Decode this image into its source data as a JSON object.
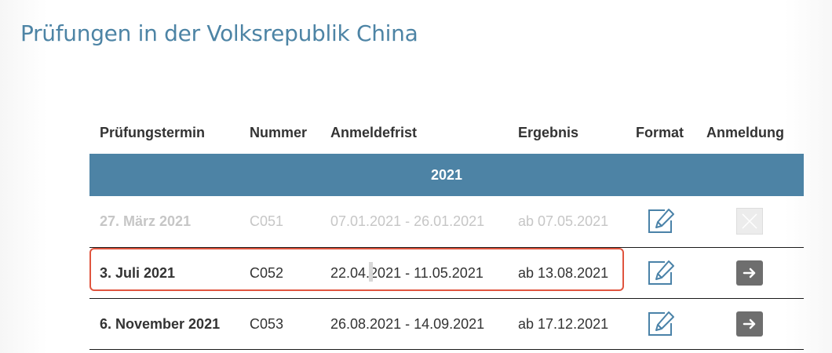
{
  "page": {
    "title": "Prüfungen in der Volksrepublik China"
  },
  "table": {
    "headers": {
      "date": "Prüfungstermin",
      "number": "Nummer",
      "deadline": "Anmeldefrist",
      "result": "Ergebnis",
      "format": "Format",
      "registration": "Anmeldung"
    },
    "year": "2021",
    "rows": [
      {
        "date": "27. März 2021",
        "number": "C051",
        "deadline": "07.01.2021 - 26.01.2021",
        "result": "ab 07.05.2021",
        "format_icon": "edit-form-icon",
        "registration_icon": "close-disabled-icon",
        "registration_open": false
      },
      {
        "date": "3. Juli 2021",
        "number": "C052",
        "deadline": "22.04.2021 - 11.05.2021",
        "result": "ab 13.08.2021",
        "format_icon": "edit-form-icon",
        "registration_icon": "arrow-right-icon",
        "registration_open": true
      },
      {
        "date": "6. November 2021",
        "number": "C053",
        "deadline": "26.08.2021 - 14.09.2021",
        "result": "ab 17.12.2021",
        "format_icon": "edit-form-icon",
        "registration_icon": "arrow-right-icon",
        "registration_open": true
      }
    ]
  },
  "colors": {
    "title": "#4d84a5",
    "year_band": "#4d83a5",
    "icon_stroke": "#4a82a8",
    "arrow_button": "#6e6e6e",
    "past_text": "#c6c6c6",
    "highlight": "#e0553f"
  }
}
